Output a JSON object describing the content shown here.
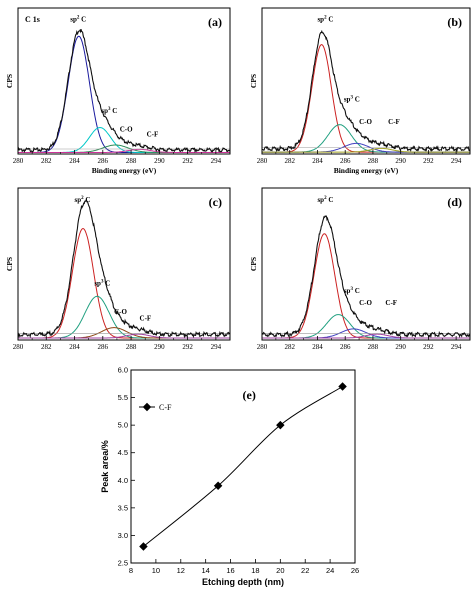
{
  "chart_data": [
    {
      "id": "a",
      "type": "line",
      "panel_label": "(a)",
      "title": "C 1s",
      "xlabel": "Binding energy (eV)",
      "ylabel": "CPS",
      "xlim": [
        280,
        295
      ],
      "xticks": [
        280,
        282,
        284,
        286,
        288,
        290,
        292,
        294
      ],
      "series": [
        {
          "name": "sp2 C",
          "color": "#1a1a9e",
          "center": 284.3,
          "sigma": 0.75,
          "amplitude": 0.93
        },
        {
          "name": "sp3 C",
          "color": "#00c8c8",
          "center": 285.8,
          "sigma": 0.75,
          "amplitude": 0.2
        },
        {
          "name": "C-O",
          "color": "#2e8b57",
          "center": 286.9,
          "sigma": 0.9,
          "amplitude": 0.06
        },
        {
          "name": "C-F",
          "color": "#cc3399",
          "center": 288.6,
          "sigma": 0.8,
          "amplitude": 0.025
        }
      ],
      "background": 0.04,
      "annotations": [
        {
          "text": "sp",
          "sup": "2",
          "tail": " C",
          "x": 283.7,
          "y": 1.06
        },
        {
          "text": "sp",
          "sup": "3",
          "tail": " C",
          "x": 285.9,
          "y": 0.33
        },
        {
          "text": "C-O",
          "x": 287.2,
          "y": 0.18
        },
        {
          "text": "C-F",
          "x": 289.1,
          "y": 0.14
        }
      ]
    },
    {
      "id": "b",
      "type": "line",
      "panel_label": "(b)",
      "title": "",
      "xlabel": "Binding energy (eV)",
      "ylabel": "CPS",
      "xlim": [
        280,
        295
      ],
      "xticks": [
        280,
        282,
        284,
        286,
        288,
        290,
        292,
        294
      ],
      "series": [
        {
          "name": "sp2 C",
          "color": "#cc2222",
          "center": 284.3,
          "sigma": 0.7,
          "amplitude": 0.86
        },
        {
          "name": "sp3 C",
          "color": "#20a080",
          "center": 285.6,
          "sigma": 0.85,
          "amplitude": 0.22
        },
        {
          "name": "C-O",
          "color": "#4040c0",
          "center": 286.8,
          "sigma": 0.9,
          "amplitude": 0.07
        },
        {
          "name": "C-F",
          "color": "#a0a020",
          "center": 288.6,
          "sigma": 0.8,
          "amplitude": 0.03
        }
      ],
      "background": 0.05,
      "annotations": [
        {
          "text": "sp",
          "sup": "2",
          "tail": " C",
          "x": 284.0,
          "y": 1.06
        },
        {
          "text": "sp",
          "sup": "3",
          "tail": " C",
          "x": 285.9,
          "y": 0.42
        },
        {
          "text": "C-O",
          "x": 287.0,
          "y": 0.24
        },
        {
          "text": "C-F",
          "x": 289.1,
          "y": 0.24
        }
      ]
    },
    {
      "id": "c",
      "type": "line",
      "panel_label": "(c)",
      "title": "",
      "xlabel": "",
      "ylabel": "CPS",
      "xlim": [
        280,
        295
      ],
      "xticks": [
        280,
        282,
        284,
        286,
        288,
        290,
        292,
        294
      ],
      "series": [
        {
          "name": "sp2 C",
          "color": "#cc2222",
          "center": 284.6,
          "sigma": 0.75,
          "amplitude": 0.84
        },
        {
          "name": "sp3 C",
          "color": "#20a080",
          "center": 285.6,
          "sigma": 0.85,
          "amplitude": 0.32
        },
        {
          "name": "C-O",
          "color": "#8b4513",
          "center": 286.8,
          "sigma": 0.9,
          "amplitude": 0.08
        },
        {
          "name": "C-F",
          "color": "#a040a0",
          "center": 288.5,
          "sigma": 0.8,
          "amplitude": 0.03
        }
      ],
      "background": 0.05,
      "annotations": [
        {
          "text": "sp",
          "sup": "2",
          "tail": " C",
          "x": 284.0,
          "y": 1.06
        },
        {
          "text": "sp",
          "sup": "3",
          "tail": " C",
          "x": 285.4,
          "y": 0.42
        },
        {
          "text": "C-O",
          "x": 286.8,
          "y": 0.2
        },
        {
          "text": "C-F",
          "x": 288.6,
          "y": 0.15
        }
      ]
    },
    {
      "id": "d",
      "type": "line",
      "panel_label": "(d)",
      "title": "",
      "xlabel": "",
      "ylabel": "CPS",
      "xlim": [
        280,
        295
      ],
      "xticks": [
        280,
        282,
        284,
        286,
        288,
        290,
        292,
        294
      ],
      "series": [
        {
          "name": "sp2 C",
          "color": "#cc2222",
          "center": 284.5,
          "sigma": 0.75,
          "amplitude": 0.8
        },
        {
          "name": "sp3 C",
          "color": "#20a080",
          "center": 285.5,
          "sigma": 0.85,
          "amplitude": 0.18
        },
        {
          "name": "C-O",
          "color": "#4040c0",
          "center": 286.6,
          "sigma": 0.9,
          "amplitude": 0.07
        },
        {
          "name": "C-F",
          "color": "#a040a0",
          "center": 288.3,
          "sigma": 0.8,
          "amplitude": 0.03
        }
      ],
      "background": 0.05,
      "annotations": [
        {
          "text": "sp",
          "sup": "2",
          "tail": " C",
          "x": 284.0,
          "y": 1.06
        },
        {
          "text": "sp",
          "sup": "3",
          "tail": " C",
          "x": 285.9,
          "y": 0.36
        },
        {
          "text": "C-O",
          "x": 287.0,
          "y": 0.27
        },
        {
          "text": "C-F",
          "x": 288.9,
          "y": 0.27
        }
      ]
    },
    {
      "id": "e",
      "type": "line",
      "panel_label": "(e)",
      "title": "",
      "xlabel": "Etching depth (nm)",
      "ylabel": "Peak area/%",
      "xlim": [
        8,
        26
      ],
      "ylim": [
        2.5,
        6.0
      ],
      "xticks": [
        8,
        10,
        12,
        14,
        16,
        18,
        20,
        22,
        24,
        26
      ],
      "yticks": [
        2.5,
        3.0,
        3.5,
        4.0,
        4.5,
        5.0,
        5.5,
        6.0
      ],
      "legend": "top-left",
      "series": [
        {
          "name": "C-F",
          "x": [
            9,
            15,
            20,
            25
          ],
          "y": [
            2.8,
            3.9,
            5.0,
            5.7
          ],
          "color": "#000000"
        }
      ]
    }
  ]
}
